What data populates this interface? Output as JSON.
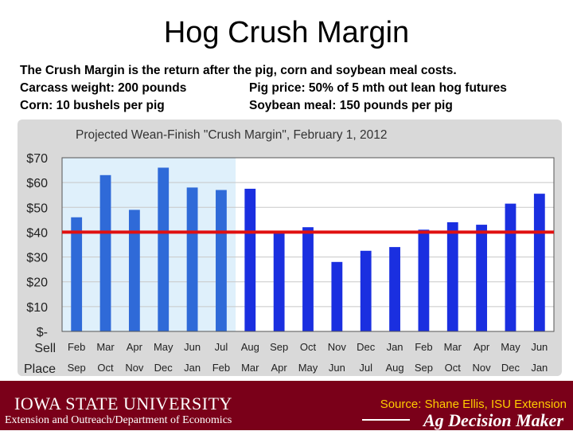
{
  "slide": {
    "title": "Hog Crush Margin",
    "description": "The Crush Margin is the return after the pig, corn and soybean meal costs.",
    "carcass": "Carcass weight:  200 pounds",
    "pig_price": "Pig price:  50% of 5 mth out lean hog futures",
    "corn": "Corn:  10 bushels per pig",
    "soy": "Soybean meal:  150 pounds per pig"
  },
  "footer": {
    "isu": "IOWA STATE UNIVERSITY",
    "extension": "Extension and Outreach/Department of Economics",
    "source": "Source: Shane Ellis, ISU Extension",
    "adm": "Ag Decision Maker"
  },
  "colors": {
    "bar": "#1a2fe0",
    "bar_light": "#2f6ad8",
    "shade": "#dff0fb",
    "reference": "#e01010",
    "footer_bg": "#7a0019",
    "source_text": "#ffcc00"
  },
  "chart_data": {
    "type": "bar",
    "title": "Projected Wean-Finish \"Crush Margin\", February 1, 2012",
    "sell_label": "Sell",
    "place_label": "Place",
    "sell_months": [
      "Feb",
      "Mar",
      "Apr",
      "May",
      "Jun",
      "Jul",
      "Aug",
      "Sep",
      "Oct",
      "Nov",
      "Dec",
      "Jan",
      "Feb",
      "Mar",
      "Apr",
      "May",
      "Jun"
    ],
    "place_months": [
      "Sep",
      "Oct",
      "Nov",
      "Dec",
      "Jan",
      "Feb",
      "Mar",
      "Apr",
      "May",
      "Jun",
      "Jul",
      "Aug",
      "Sep",
      "Oct",
      "Nov",
      "Dec",
      "Jan"
    ],
    "values": [
      46,
      63,
      49,
      66,
      58,
      57,
      57.5,
      40,
      42,
      28,
      32.5,
      34,
      41,
      44,
      43,
      51.5,
      55.5
    ],
    "historical_count": 6,
    "yticks": [
      "$70",
      "$60",
      "$50",
      "$40",
      "$30",
      "$20",
      "$10",
      "$-"
    ],
    "ylim": [
      0,
      70
    ],
    "reference_line": 40,
    "grid": true
  }
}
